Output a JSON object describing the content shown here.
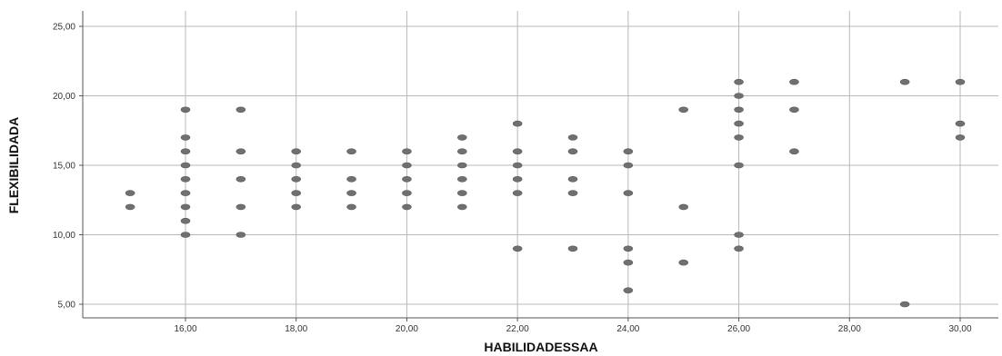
{
  "chart_data": {
    "type": "scatter",
    "xlabel": "HABILIDADESSAA",
    "ylabel": "FLEXIBILIDADA",
    "xlim": [
      14.5,
      31.0
    ],
    "ylim": [
      4.0,
      26.0
    ],
    "x_ticks": [
      16,
      18,
      20,
      22,
      24,
      26,
      28,
      30
    ],
    "y_ticks": [
      5,
      10,
      15,
      20,
      25
    ],
    "x_tick_labels": [
      "16,00",
      "18,00",
      "20,00",
      "22,00",
      "24,00",
      "26,00",
      "28,00",
      "30,00"
    ],
    "y_tick_labels": [
      "5,00",
      "10,00",
      "15,00",
      "20,00",
      "25,00"
    ],
    "vertical_grid": true,
    "horizontal_grid": true,
    "marker_color": "#707070",
    "grid_color": "#b8b8b8",
    "points": [
      [
        15,
        13
      ],
      [
        15,
        12
      ],
      [
        16,
        19
      ],
      [
        16,
        17
      ],
      [
        16,
        16
      ],
      [
        16,
        15
      ],
      [
        16,
        14
      ],
      [
        16,
        13
      ],
      [
        16,
        12
      ],
      [
        16,
        11
      ],
      [
        16,
        10
      ],
      [
        17,
        19
      ],
      [
        17,
        16
      ],
      [
        17,
        14
      ],
      [
        17,
        12
      ],
      [
        17,
        10
      ],
      [
        18,
        16
      ],
      [
        18,
        15
      ],
      [
        18,
        14
      ],
      [
        18,
        13
      ],
      [
        18,
        12
      ],
      [
        19,
        16
      ],
      [
        19,
        14
      ],
      [
        19,
        13
      ],
      [
        19,
        12
      ],
      [
        20,
        16
      ],
      [
        20,
        15
      ],
      [
        20,
        14
      ],
      [
        20,
        13
      ],
      [
        20,
        12
      ],
      [
        21,
        17
      ],
      [
        21,
        16
      ],
      [
        21,
        15
      ],
      [
        21,
        14
      ],
      [
        21,
        13
      ],
      [
        21,
        12
      ],
      [
        22,
        18
      ],
      [
        22,
        16
      ],
      [
        22,
        15
      ],
      [
        22,
        14
      ],
      [
        22,
        13
      ],
      [
        22,
        9
      ],
      [
        23,
        17
      ],
      [
        23,
        16
      ],
      [
        23,
        14
      ],
      [
        23,
        13
      ],
      [
        23,
        9
      ],
      [
        24,
        16
      ],
      [
        24,
        15
      ],
      [
        24,
        13
      ],
      [
        24,
        9
      ],
      [
        24,
        8
      ],
      [
        24,
        6
      ],
      [
        25,
        19
      ],
      [
        25,
        12
      ],
      [
        25,
        8
      ],
      [
        26,
        21
      ],
      [
        26,
        20
      ],
      [
        26,
        19
      ],
      [
        26,
        18
      ],
      [
        26,
        17
      ],
      [
        26,
        15
      ],
      [
        26,
        10
      ],
      [
        26,
        9
      ],
      [
        27,
        21
      ],
      [
        27,
        19
      ],
      [
        27,
        16
      ],
      [
        29,
        21
      ],
      [
        29,
        5
      ],
      [
        30,
        21
      ],
      [
        30,
        18
      ],
      [
        30,
        17
      ]
    ]
  }
}
